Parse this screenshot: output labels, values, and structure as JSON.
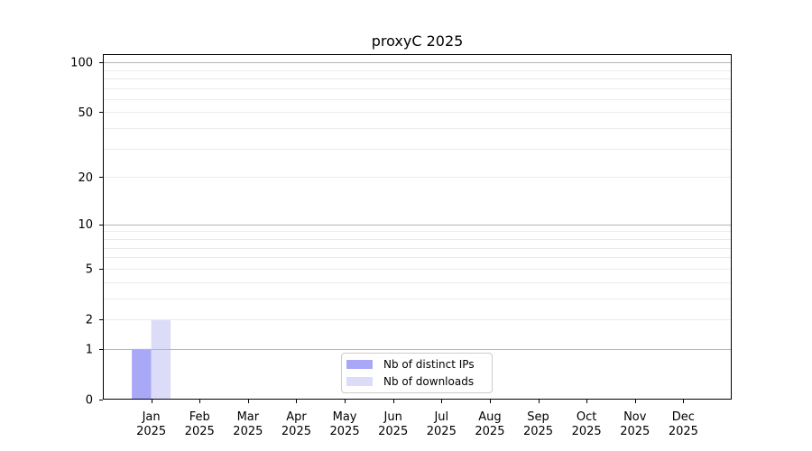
{
  "chart_data": {
    "type": "bar",
    "title": "proxyC 2025",
    "categories": [
      "Jan",
      "Feb",
      "Mar",
      "Apr",
      "May",
      "Jun",
      "Jul",
      "Aug",
      "Sep",
      "Oct",
      "Nov",
      "Dec"
    ],
    "tick_year": "2025",
    "series": [
      {
        "name": "Nb of distinct IPs",
        "color": "#a8a8f7",
        "values": [
          1,
          0,
          0,
          0,
          0,
          0,
          0,
          0,
          0,
          0,
          0,
          0
        ]
      },
      {
        "name": "Nb of downloads",
        "color": "#dcdcf9",
        "values": [
          2,
          0,
          0,
          0,
          0,
          0,
          0,
          0,
          0,
          0,
          0,
          0
        ]
      }
    ],
    "axes": {
      "yscale": "log1p",
      "ylim": [
        0,
        112
      ],
      "yticks": [
        0,
        1,
        2,
        5,
        10,
        20,
        50,
        100
      ],
      "major_gridlines": [
        1,
        10,
        100
      ],
      "minor_gridlines": [
        2,
        3,
        4,
        5,
        6,
        7,
        8,
        9,
        20,
        30,
        40,
        50,
        60,
        70,
        80,
        90
      ],
      "grid": true
    },
    "legend": {
      "position": "lower center",
      "labels": [
        "Nb of distinct IPs",
        "Nb of downloads"
      ]
    },
    "colors": {
      "major_grid": "#b6b6b6",
      "minor_grid": "#ebebeb",
      "spine": "#000000",
      "text": "#000000",
      "legend_border": "#cccccc",
      "background": "#ffffff"
    }
  }
}
